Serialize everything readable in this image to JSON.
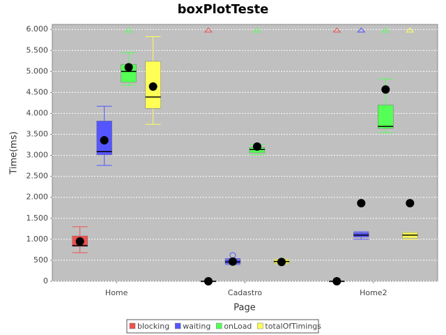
{
  "chart_data": {
    "type": "box",
    "title": "boxPlotTeste",
    "x_label": "Page",
    "y_label": "Time(ms)",
    "categories": [
      "Home",
      "Cadastro",
      "Home2"
    ],
    "ylim": [
      0,
      6120
    ],
    "yticks": [
      0,
      500,
      {
        "value": 1000,
        "label": "1.000"
      },
      {
        "value": 1500,
        "label": "1.500"
      },
      {
        "value": 2000,
        "label": "2.000"
      },
      {
        "value": 2500,
        "label": "2.500"
      },
      {
        "value": 3000,
        "label": "3.000"
      },
      {
        "value": 3500,
        "label": "3.500"
      },
      {
        "value": 4000,
        "label": "4.000"
      },
      {
        "value": 4500,
        "label": "4.500"
      },
      {
        "value": 5000,
        "label": "5.000"
      },
      {
        "value": 5500,
        "label": "5.500"
      },
      {
        "value": 6000,
        "label": "6.000"
      }
    ],
    "grid": true,
    "legend": "bottom",
    "series": [
      {
        "name": "blocking",
        "color": "#f05050",
        "far_out": [
          false,
          true,
          true
        ],
        "boxes": [
          {
            "min": 680,
            "q1": 830,
            "median": 850,
            "q3": 1080,
            "max": 1300,
            "mean": 950,
            "outliers": []
          },
          {
            "min": 0,
            "q1": 0,
            "median": 0,
            "q3": 0,
            "max": 0,
            "mean": 0,
            "outliers": []
          },
          {
            "min": 0,
            "q1": 0,
            "median": 0,
            "q3": 0,
            "max": 0,
            "mean": 0,
            "outliers": []
          }
        ]
      },
      {
        "name": "waiting",
        "color": "#5555ff",
        "far_out": [
          false,
          false,
          true
        ],
        "boxes": [
          {
            "min": 2760,
            "q1": 3010,
            "median": 3090,
            "q3": 3820,
            "max": 4170,
            "mean": 3360,
            "outliers": []
          },
          {
            "min": 400,
            "q1": 420,
            "median": 460,
            "q3": 520,
            "max": 540,
            "mean": 470,
            "outliers": [
              620
            ]
          },
          {
            "min": 1000,
            "q1": 1050,
            "median": 1100,
            "q3": 1160,
            "max": 1180,
            "mean": 1860,
            "outliers": []
          }
        ]
      },
      {
        "name": "onLoad",
        "color": "#55ff55",
        "far_out": [
          true,
          true,
          true
        ],
        "boxes": [
          {
            "min": 4670,
            "q1": 4740,
            "median": 5000,
            "q3": 5170,
            "max": 5450,
            "mean": 5100,
            "outliers": []
          },
          {
            "min": 3010,
            "q1": 3060,
            "median": 3140,
            "q3": 3190,
            "max": 3260,
            "mean": 3210,
            "outliers": []
          },
          {
            "min": 3540,
            "q1": 3640,
            "median": 3690,
            "q3": 4200,
            "max": 4820,
            "mean": 4570,
            "outliers": []
          }
        ]
      },
      {
        "name": "totalOfTimings",
        "color": "#ffff55",
        "far_out": [
          false,
          false,
          true
        ],
        "boxes": [
          {
            "min": 3740,
            "q1": 4120,
            "median": 4390,
            "q3": 5240,
            "max": 5830,
            "mean": 4640,
            "outliers": []
          },
          {
            "min": 420,
            "q1": 430,
            "median": 470,
            "q3": 510,
            "max": 520,
            "mean": 460,
            "outliers": []
          },
          {
            "min": 1000,
            "q1": 1030,
            "median": 1100,
            "q3": 1150,
            "max": 1160,
            "mean": 1860,
            "outliers": []
          }
        ]
      }
    ]
  }
}
